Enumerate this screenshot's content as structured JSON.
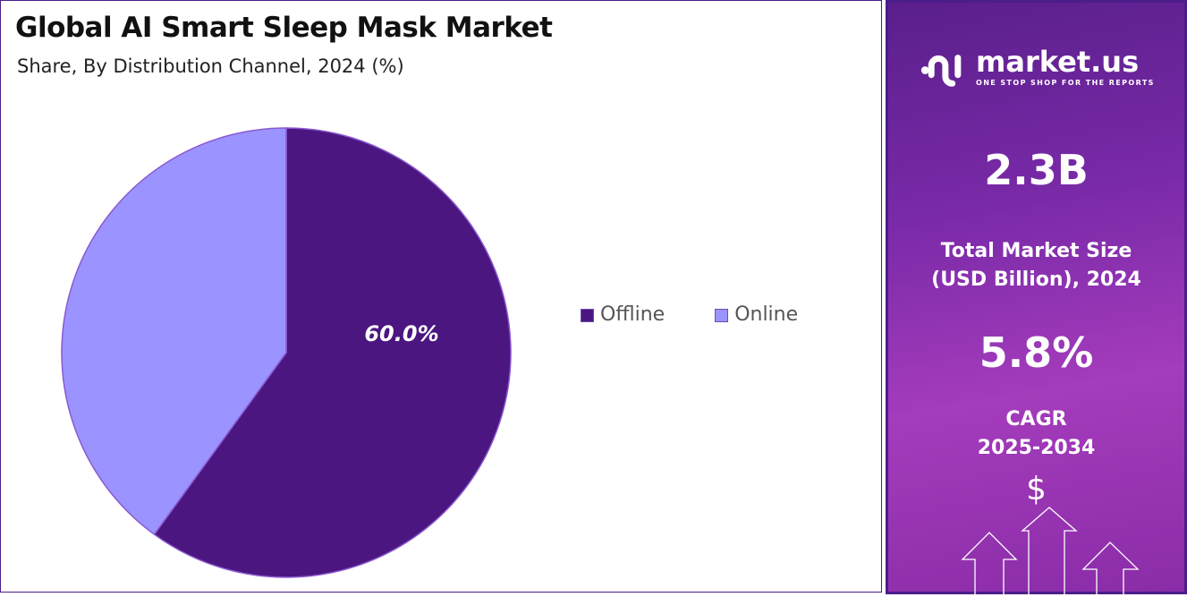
{
  "chart_data": {
    "type": "pie",
    "title": "Global AI Smart Sleep Mask Market",
    "subtitle": "Share, By Distribution Channel, 2024 (%)",
    "slices": [
      {
        "label": "Offline",
        "value": 60.0,
        "color": "#4b1680",
        "data_label": "60.0%"
      },
      {
        "label": "Online",
        "value": 40.0,
        "color": "#9b93ff"
      }
    ],
    "legend_position": "right"
  },
  "panel": {
    "logo_text": "market.us",
    "tagline": "ONE STOP SHOP FOR THE REPORTS",
    "market_size": "2.3B",
    "market_size_label_1": "Total Market Size",
    "market_size_label_2": "(USD Billion), 2024",
    "cagr": "5.8%",
    "cagr_label_1": "CAGR",
    "cagr_label_2": "2025-2034",
    "dollar_symbol": "$"
  }
}
